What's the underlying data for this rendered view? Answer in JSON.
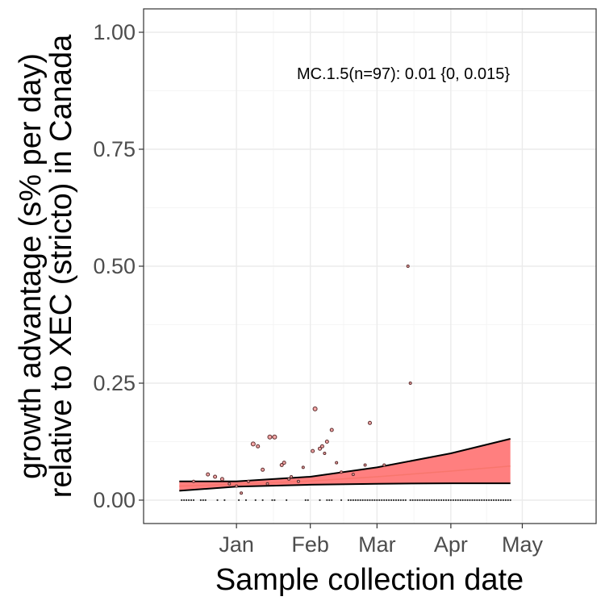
{
  "chart_data": {
    "type": "scatter",
    "title": "",
    "xlabel": "Sample collection date",
    "ylabel": [
      "growth advantage (s% per day)",
      "relative to XEC (stricto) in Canada"
    ],
    "x_ticks": [
      {
        "date": "2025-01-01",
        "label": "Jan"
      },
      {
        "date": "2025-02-01",
        "label": "Feb"
      },
      {
        "date": "2025-03-01",
        "label": "Mar"
      },
      {
        "date": "2025-04-01",
        "label": "Apr"
      },
      {
        "date": "2025-05-01",
        "label": "May"
      }
    ],
    "y_ticks": [
      {
        "value": 0.0,
        "label": "0.00"
      },
      {
        "value": 0.25,
        "label": "0.25"
      },
      {
        "value": 0.5,
        "label": "0.50"
      },
      {
        "value": 0.75,
        "label": "0.75"
      },
      {
        "value": 1.0,
        "label": "1.00"
      }
    ],
    "xlim": [
      "2024-11-23",
      "2025-06-01"
    ],
    "ylim": [
      -0.05,
      1.05
    ],
    "grid": true,
    "annotation": "MC.1.5(n=97): 0.01 {0, 0.015}",
    "colors": {
      "band_fill": "#ff7f7f",
      "fit_line": "#f8766d",
      "bound_line": "#000000",
      "point_fill": "#f4a6a6",
      "point_stroke": "#5a2d2d",
      "zero_points": "#333333",
      "grid_major": "#ebebeb",
      "grid_minor": "#f5f5f5",
      "panel_border": "#333333"
    },
    "fit": {
      "x": [
        "2024-12-08",
        "2025-01-01",
        "2025-02-01",
        "2025-03-01",
        "2025-04-01",
        "2025-04-26"
      ],
      "mid": [
        0.03,
        0.034,
        0.041,
        0.05,
        0.062,
        0.073
      ],
      "upper": [
        0.04,
        0.04,
        0.05,
        0.07,
        0.1,
        0.131
      ],
      "lower": [
        0.02,
        0.029,
        0.033,
        0.035,
        0.036,
        0.036
      ]
    },
    "points": [
      {
        "x": "2024-12-14",
        "y": 0.04,
        "size": 1.5
      },
      {
        "x": "2024-12-20",
        "y": 0.055,
        "size": 2
      },
      {
        "x": "2024-12-23",
        "y": 0.05,
        "size": 2
      },
      {
        "x": "2024-12-26",
        "y": 0.045,
        "size": 2
      },
      {
        "x": "2024-12-29",
        "y": 0.035,
        "size": 1.5
      },
      {
        "x": "2025-01-01",
        "y": 0.03,
        "size": 1.5
      },
      {
        "x": "2025-01-03",
        "y": 0.015,
        "size": 1.5
      },
      {
        "x": "2025-01-06",
        "y": 0.04,
        "size": 1.5
      },
      {
        "x": "2025-01-08",
        "y": 0.12,
        "size": 2.5
      },
      {
        "x": "2025-01-10",
        "y": 0.115,
        "size": 2
      },
      {
        "x": "2025-01-12",
        "y": 0.065,
        "size": 2
      },
      {
        "x": "2025-01-14",
        "y": 0.035,
        "size": 1.5
      },
      {
        "x": "2025-01-15",
        "y": 0.135,
        "size": 2.5
      },
      {
        "x": "2025-01-17",
        "y": 0.135,
        "size": 2.5
      },
      {
        "x": "2025-01-20",
        "y": 0.075,
        "size": 2
      },
      {
        "x": "2025-01-21",
        "y": 0.08,
        "size": 2
      },
      {
        "x": "2025-01-23",
        "y": 0.045,
        "size": 1.5
      },
      {
        "x": "2025-01-24",
        "y": 0.05,
        "size": 1.5
      },
      {
        "x": "2025-01-27",
        "y": 0.04,
        "size": 1.5
      },
      {
        "x": "2025-01-29",
        "y": 0.07,
        "size": 1.5
      },
      {
        "x": "2025-02-02",
        "y": 0.105,
        "size": 2
      },
      {
        "x": "2025-02-03",
        "y": 0.195,
        "size": 2.5
      },
      {
        "x": "2025-02-05",
        "y": 0.11,
        "size": 2
      },
      {
        "x": "2025-02-06",
        "y": 0.115,
        "size": 2
      },
      {
        "x": "2025-02-07",
        "y": 0.1,
        "size": 1.5
      },
      {
        "x": "2025-02-08",
        "y": 0.125,
        "size": 2
      },
      {
        "x": "2025-02-10",
        "y": 0.15,
        "size": 2
      },
      {
        "x": "2025-02-12",
        "y": 0.08,
        "size": 1.5
      },
      {
        "x": "2025-02-14",
        "y": 0.06,
        "size": 1.5
      },
      {
        "x": "2025-02-19",
        "y": 0.055,
        "size": 1.5
      },
      {
        "x": "2025-02-24",
        "y": 0.075,
        "size": 1.5
      },
      {
        "x": "2025-02-26",
        "y": 0.165,
        "size": 2
      },
      {
        "x": "2025-03-04",
        "y": 0.075,
        "size": 1.5
      },
      {
        "x": "2025-03-14",
        "y": 0.5,
        "size": 1.5
      },
      {
        "x": "2025-03-15",
        "y": 0.25,
        "size": 1.5
      }
    ],
    "zero_point_ranges": [
      [
        "2024-12-09",
        "2024-12-14"
      ],
      [
        "2024-12-17",
        "2024-12-19"
      ],
      [
        "2024-12-24",
        "2024-12-24"
      ],
      [
        "2024-12-27",
        "2024-12-27"
      ],
      [
        "2025-01-02",
        "2025-01-02"
      ],
      [
        "2025-01-05",
        "2025-01-05"
      ],
      [
        "2025-01-09",
        "2025-01-09"
      ],
      [
        "2025-01-12",
        "2025-01-12"
      ],
      [
        "2025-01-16",
        "2025-01-17"
      ],
      [
        "2025-01-22",
        "2025-01-22"
      ],
      [
        "2025-01-30",
        "2025-01-31"
      ],
      [
        "2025-02-05",
        "2025-02-05"
      ],
      [
        "2025-02-08",
        "2025-02-10"
      ],
      [
        "2025-02-14",
        "2025-02-14"
      ],
      [
        "2025-02-17",
        "2025-03-13"
      ],
      [
        "2025-03-15",
        "2025-04-26"
      ]
    ]
  }
}
